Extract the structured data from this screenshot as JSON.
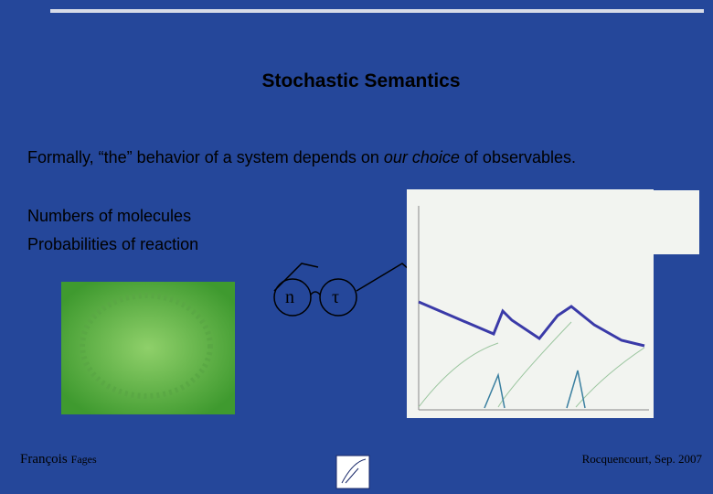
{
  "slide": {
    "title": "Stochastic Semantics",
    "intro": {
      "before": "Formally, “the” behavior of a system depends on ",
      "emphasis": "our choice",
      "after": " of observables."
    },
    "items": [
      "Numbers of molecules",
      "Probabilities of reaction"
    ],
    "lenses": [
      "n",
      "τ"
    ],
    "footer": {
      "author_first": "François",
      "author_last": "Fages",
      "place_date": "Rocquencourt, Sep. 2007"
    }
  }
}
